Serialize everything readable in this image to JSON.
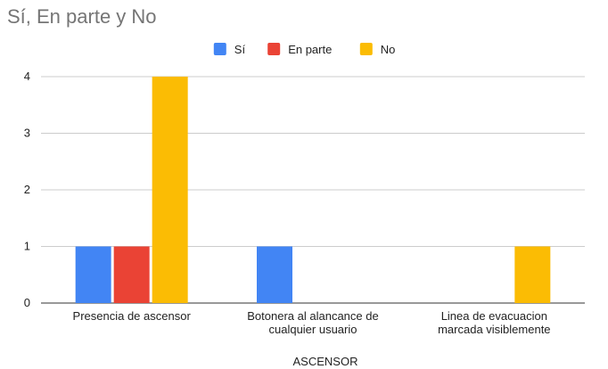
{
  "chart_data": {
    "type": "bar",
    "title": "Sí, En parte y No",
    "xlabel": "ASCENSOR",
    "ylabel": "",
    "categories": [
      [
        "Presencia de ascensor"
      ],
      [
        "Botonera al alancance de",
        "cualquier usuario"
      ],
      [
        "Linea de evacuacion",
        "marcada visiblemente"
      ]
    ],
    "series": [
      {
        "name": "Sí",
        "color": "#4285f4",
        "values": [
          1,
          1,
          0
        ]
      },
      {
        "name": "En parte",
        "color": "#ea4335",
        "values": [
          1,
          0,
          0
        ]
      },
      {
        "name": "No",
        "color": "#fbbc04",
        "values": [
          4,
          0,
          1
        ]
      }
    ],
    "ylim": [
      0,
      4
    ],
    "yticks": [
      "0",
      "1",
      "2",
      "3",
      "4"
    ],
    "grid": true,
    "legend": "top-center"
  }
}
